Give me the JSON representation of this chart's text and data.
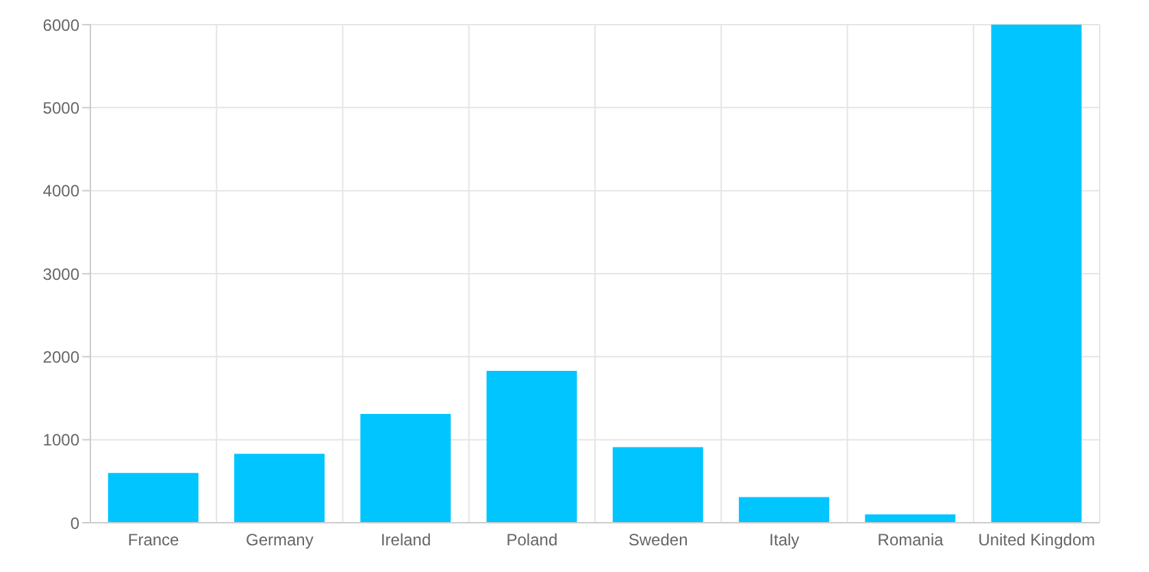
{
  "chart_data": {
    "type": "bar",
    "categories": [
      "France",
      "Germany",
      "Ireland",
      "Poland",
      "Sweden",
      "Italy",
      "Romania",
      "United Kingdom"
    ],
    "values": [
      600,
      830,
      1310,
      1830,
      910,
      310,
      100,
      6000
    ],
    "color": "#00c5ff",
    "ylim": [
      0,
      6000
    ],
    "yticks": [
      0,
      1000,
      2000,
      3000,
      4000,
      5000,
      6000
    ],
    "grid": true
  }
}
